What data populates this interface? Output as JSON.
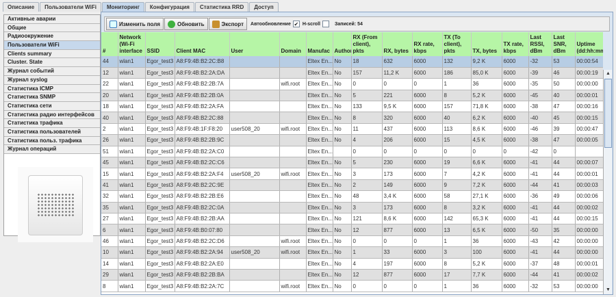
{
  "tabs": [
    "Описание",
    "Пользователи WiFi",
    "Мониторинг",
    "Конфигурация",
    "Статистика RRD",
    "Доступ"
  ],
  "active_tab": 2,
  "sidebar": {
    "items": [
      "Активные аварии",
      "Общие",
      "Радиоокружение",
      "Пользователи WiFi",
      "Clients summary",
      "Cluster. State",
      "Журнал событий",
      "Журнал syslog",
      "Статистика ICMP",
      "Статистика SNMP",
      "Статистика сети",
      "Статистика радио интерфейсов",
      "Статистика трафика",
      "Статистика пользователей",
      "Статистика польз. трафика",
      "Журнал операций"
    ],
    "active": 3
  },
  "toolbar": {
    "edit_fields": "Изменить поля",
    "refresh": "Обновить",
    "export": "Экспорт",
    "auto_refresh_label": "Автообновление",
    "auto_refresh_checked": true,
    "hscroll_label": "H-scroll",
    "hscroll_checked": false,
    "records": "Записей: 54"
  },
  "table": {
    "columns": [
      "#",
      "Network (Wi-Fi interface",
      "SSID",
      "Client MAC",
      "User",
      "Domain",
      "Manufac",
      "Author",
      "RX (From client), pkts",
      "RX, bytes",
      "RX rate, kbps",
      "TX (To client), pkts",
      "TX, bytes",
      "TX rate, kbps",
      "Last RSSI, dBm",
      "Last SNR, dBm",
      "Uptime (dd:hh:mm"
    ],
    "selected_row": 0,
    "rows": [
      [
        "44",
        "wlan1",
        "Egor_test3",
        "A8:F9:4B:B2:2C:B8",
        "",
        "",
        "Eltex En...",
        "No",
        "18",
        "632",
        "6000",
        "132",
        "9,2 K",
        "6000",
        "-32",
        "53",
        "00:00:54"
      ],
      [
        "12",
        "wlan1",
        "Egor_test3",
        "A8:F9:4B:B2:2A:DA",
        "",
        "",
        "Eltex En...",
        "No",
        "157",
        "11,2 K",
        "6000",
        "186",
        "85,0 K",
        "6000",
        "-39",
        "46",
        "00:00:19"
      ],
      [
        "22",
        "wlan1",
        "Egor_test3",
        "A8:F9:4B:B2:2B:7A",
        "",
        "wifi.root",
        "Eltex En...",
        "No",
        "0",
        "0",
        "0",
        "1",
        "36",
        "6000",
        "-35",
        "50",
        "00:00:00"
      ],
      [
        "20",
        "wlan1",
        "Egor_test3",
        "A8:F9:4B:B2:2B:0A",
        "",
        "",
        "Eltex En...",
        "No",
        "5",
        "221",
        "6000",
        "8",
        "5,2 K",
        "6000",
        "-45",
        "40",
        "00:00:01"
      ],
      [
        "18",
        "wlan1",
        "Egor_test3",
        "A8:F9:4B:B2:2A:FA",
        "",
        "",
        "Eltex En...",
        "No",
        "133",
        "9,5 K",
        "6000",
        "157",
        "71,8 K",
        "6000",
        "-38",
        "47",
        "00:00:16"
      ],
      [
        "40",
        "wlan1",
        "Egor_test3",
        "A8:F9:4B:B2:2C:88",
        "",
        "",
        "Eltex En...",
        "No",
        "8",
        "320",
        "6000",
        "40",
        "6,2 K",
        "6000",
        "-40",
        "45",
        "00:00:15"
      ],
      [
        "2",
        "wlan1",
        "Egor_test3",
        "A8:F9:4B:1F:F8:20",
        "user508_20",
        "wifi.root",
        "Eltex En...",
        "No",
        "11",
        "437",
        "6000",
        "113",
        "8,6 K",
        "6000",
        "-46",
        "39",
        "00:00:47"
      ],
      [
        "26",
        "wlan1",
        "Egor_test3",
        "A8:F9:4B:B2:2B:9C",
        "",
        "",
        "Eltex En...",
        "No",
        "4",
        "206",
        "6000",
        "15",
        "4,5 K",
        "6000",
        "-38",
        "47",
        "00:00:05"
      ],
      [
        "51",
        "wlan1",
        "Egor_test3",
        "A8:F9:4B:B2:2A:C0",
        "",
        "",
        "Eltex En...",
        "",
        "0",
        "0",
        "0",
        "0",
        "0",
        "0",
        "-42",
        "0",
        ""
      ],
      [
        "45",
        "wlan1",
        "Egor_test3",
        "A8:F9:4B:B2:2C:C6",
        "",
        "",
        "Eltex En...",
        "No",
        "5",
        "230",
        "6000",
        "19",
        "6,6 K",
        "6000",
        "-41",
        "44",
        "00:00:07"
      ],
      [
        "15",
        "wlan1",
        "Egor_test3",
        "A8:F9:4B:B2:2A:F4",
        "user508_20",
        "wifi.root",
        "Eltex En...",
        "No",
        "3",
        "173",
        "6000",
        "7",
        "4,2 K",
        "6000",
        "-41",
        "44",
        "00:00:01"
      ],
      [
        "41",
        "wlan1",
        "Egor_test3",
        "A8:F9:4B:B2:2C:9E",
        "",
        "",
        "Eltex En...",
        "No",
        "2",
        "149",
        "6000",
        "9",
        "7,2 K",
        "6000",
        "-44",
        "41",
        "00:00:03"
      ],
      [
        "32",
        "wlan1",
        "Egor_test3",
        "A8:F9:4B:B2:2B:E6",
        "",
        "",
        "Eltex En...",
        "No",
        "48",
        "3,4 K",
        "6000",
        "58",
        "27,1 K",
        "6000",
        "-36",
        "49",
        "00:00:06"
      ],
      [
        "35",
        "wlan1",
        "Egor_test3",
        "A8:F9:4B:B2:2C:0A",
        "",
        "",
        "Eltex En...",
        "No",
        "3",
        "173",
        "6000",
        "8",
        "3,2 K",
        "6000",
        "-41",
        "44",
        "00:00:02"
      ],
      [
        "27",
        "wlan1",
        "Egor_test3",
        "A8:F9:4B:B2:2B:AA",
        "",
        "",
        "Eltex En...",
        "No",
        "121",
        "8,6 K",
        "6000",
        "142",
        "65,3 K",
        "6000",
        "-41",
        "44",
        "00:00:15"
      ],
      [
        "6",
        "wlan1",
        "Egor_test3",
        "A8:F9:4B:B0:07:80",
        "",
        "",
        "Eltex En...",
        "No",
        "12",
        "877",
        "6000",
        "13",
        "6,5 K",
        "6000",
        "-50",
        "35",
        "00:00:00"
      ],
      [
        "46",
        "wlan1",
        "Egor_test3",
        "A8:F9:4B:B2:2C:D6",
        "",
        "wifi.root",
        "Eltex En...",
        "No",
        "0",
        "0",
        "0",
        "1",
        "36",
        "6000",
        "-43",
        "42",
        "00:00:00"
      ],
      [
        "10",
        "wlan1",
        "Egor_test3",
        "A8:F9:4B:B2:2A:94",
        "user508_20",
        "wifi.root",
        "Eltex En...",
        "No",
        "1",
        "33",
        "6000",
        "3",
        "100",
        "6000",
        "-41",
        "44",
        "00:00:00"
      ],
      [
        "14",
        "wlan1",
        "Egor_test3",
        "A8:F9:4B:B2:2A:E0",
        "",
        "",
        "Eltex En...",
        "No",
        "4",
        "197",
        "6000",
        "8",
        "5,2 K",
        "6000",
        "-37",
        "48",
        "00:00:01"
      ],
      [
        "29",
        "wlan1",
        "Egor_test3",
        "A8:F9:4B:B2:2B:BA",
        "",
        "",
        "Eltex En...",
        "No",
        "12",
        "877",
        "6000",
        "17",
        "7,7 K",
        "6000",
        "-44",
        "41",
        "00:00:02"
      ],
      [
        "8",
        "wlan1",
        "Egor_test3",
        "A8:F9:4B:B2:2A:7C",
        "",
        "wifi.root",
        "Eltex En...",
        "No",
        "0",
        "0",
        "0",
        "1",
        "36",
        "6000",
        "-32",
        "53",
        "00:00:00"
      ]
    ]
  },
  "colors": {
    "header_bg": "#b6f5a6",
    "selected_row": "#b7cde4",
    "alt_row": "#e0e0e0",
    "active_tab": "#c6d8ec"
  }
}
